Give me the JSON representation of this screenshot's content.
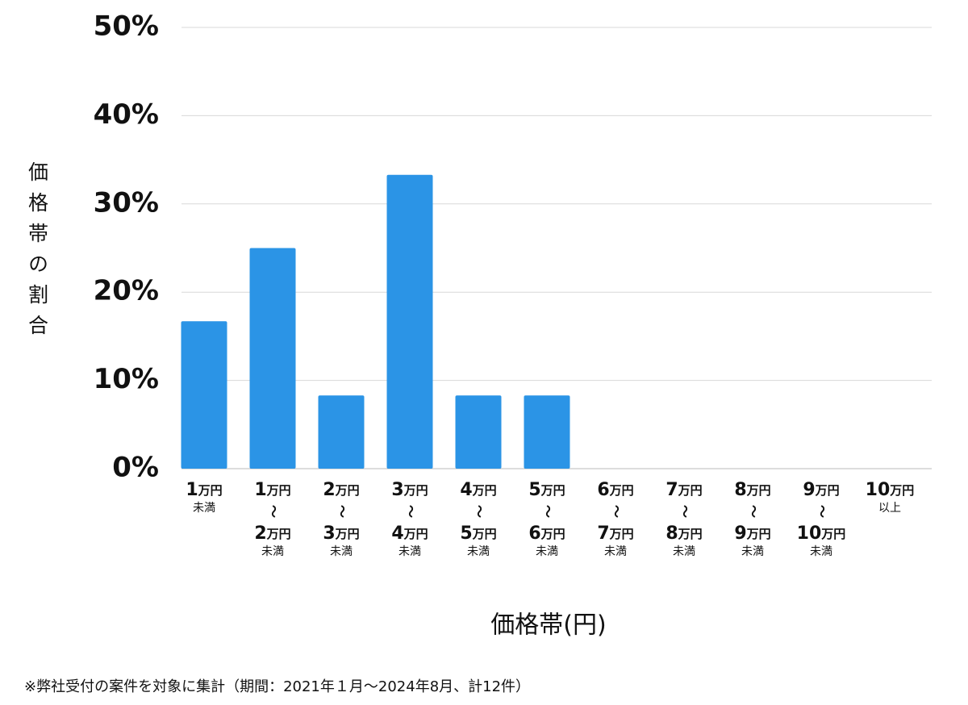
{
  "chart_data": {
    "type": "bar",
    "y_label": "価格帯の割合",
    "x_label": "価格帯(円)",
    "footnote": "※弊社受付の案件を対象に集計（期間：2021年１月～2024年8月、計12件）",
    "categories": [
      [
        "1万円",
        "未満"
      ],
      [
        "1万円",
        "〜",
        "2万円",
        "未満"
      ],
      [
        "2万円",
        "〜",
        "3万円",
        "未満"
      ],
      [
        "3万円",
        "〜",
        "4万円",
        "未満"
      ],
      [
        "4万円",
        "〜",
        "5万円",
        "未満"
      ],
      [
        "5万円",
        "〜",
        "6万円",
        "未満"
      ],
      [
        "6万円",
        "〜",
        "7万円",
        "未満"
      ],
      [
        "7万円",
        "〜",
        "8万円",
        "未満"
      ],
      [
        "8万円",
        "〜",
        "9万円",
        "未満"
      ],
      [
        "9万円",
        "〜",
        "10万円",
        "未満"
      ],
      [
        "10万円",
        "以上"
      ]
    ],
    "values": [
      16.7,
      25,
      8.3,
      33.3,
      8.3,
      8.3,
      0,
      0,
      0,
      0,
      0
    ],
    "color": "#2b94e6",
    "ylim": [
      0,
      50
    ],
    "yticks": [
      {
        "value": 0,
        "label": "0%"
      },
      {
        "value": 10,
        "label": "10%"
      },
      {
        "value": 20,
        "label": "20%"
      },
      {
        "value": 30,
        "label": "30%"
      },
      {
        "value": 40,
        "label": "40%"
      },
      {
        "value": 50,
        "label": "50%"
      }
    ],
    "grid": true
  }
}
